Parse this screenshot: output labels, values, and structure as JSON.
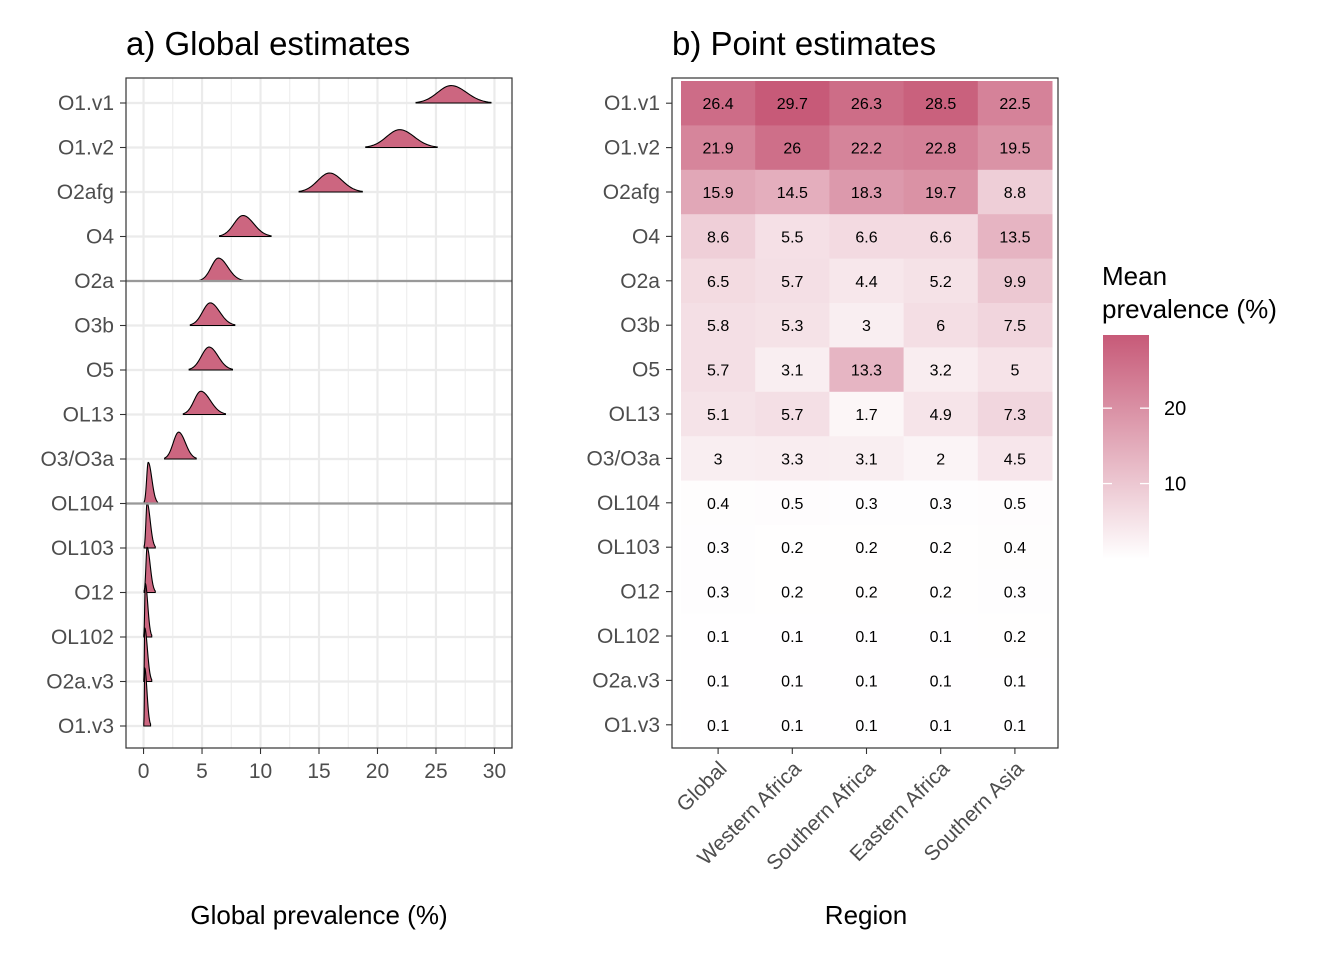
{
  "panel_a": {
    "title": "a) Global estimates",
    "xlabel": "Global prevalence (%)"
  },
  "panel_b": {
    "title": "b) Point estimates",
    "xlabel": "Region"
  },
  "legend": {
    "title_line1": "Mean",
    "title_line2": "prevalence (%)",
    "ticks": [
      10,
      20
    ],
    "color_low": "#ffffff",
    "color_high": "#c75a78"
  },
  "colors": {
    "ridge_fill": "#cc6680",
    "ridge_line": "#000000",
    "grid": "#ebebeb",
    "ref_line": "#999999"
  },
  "chart_data": [
    {
      "type": "ridgeline",
      "title": "a) Global estimates",
      "xlabel": "Global prevalence (%)",
      "ylabel": "",
      "xlim": [
        -1.5,
        31.5
      ],
      "xticks": [
        0,
        5,
        10,
        15,
        20,
        25,
        30
      ],
      "grid": true,
      "categories": [
        "O1.v1",
        "O1.v2",
        "O2afg",
        "O4",
        "O2a",
        "O3b",
        "O5",
        "OL13",
        "O3/O3a",
        "OL104",
        "OL103",
        "O12",
        "OL102",
        "O2a.v3",
        "O1.v3"
      ],
      "reference_lines_at": [
        "O2a",
        "OL104"
      ],
      "series": [
        {
          "category": "O1.v1",
          "mode": 26.3,
          "min": 23.3,
          "max": 29.7
        },
        {
          "category": "O1.v2",
          "mode": 21.9,
          "min": 19.0,
          "max": 25.1
        },
        {
          "category": "O2afg",
          "mode": 15.9,
          "min": 13.3,
          "max": 18.7
        },
        {
          "category": "O4",
          "mode": 8.5,
          "min": 6.5,
          "max": 10.9
        },
        {
          "category": "O2a",
          "mode": 6.4,
          "min": 4.8,
          "max": 8.5
        },
        {
          "category": "O3b",
          "mode": 5.7,
          "min": 4.0,
          "max": 7.8
        },
        {
          "category": "O5",
          "mode": 5.6,
          "min": 3.9,
          "max": 7.6
        },
        {
          "category": "OL13",
          "mode": 4.9,
          "min": 3.4,
          "max": 7.0
        },
        {
          "category": "O3/O3a",
          "mode": 3.0,
          "min": 1.8,
          "max": 4.5
        },
        {
          "category": "OL104",
          "mode": 0.4,
          "min": 0.05,
          "max": 1.2
        },
        {
          "category": "OL103",
          "mode": 0.3,
          "min": 0.05,
          "max": 1.0
        },
        {
          "category": "O12",
          "mode": 0.3,
          "min": 0.05,
          "max": 1.0
        },
        {
          "category": "OL102",
          "mode": 0.15,
          "min": 0.02,
          "max": 0.7
        },
        {
          "category": "O2a.v3",
          "mode": 0.1,
          "min": 0.02,
          "max": 0.7
        },
        {
          "category": "O1.v3",
          "mode": 0.1,
          "min": 0.02,
          "max": 0.6
        }
      ]
    },
    {
      "type": "heatmap",
      "title": "b) Point estimates",
      "xlabel": "Region",
      "ylabel": "",
      "x_categories": [
        "Global",
        "Western Africa",
        "Southern Africa",
        "Eastern Africa",
        "Southern Asia"
      ],
      "y_categories": [
        "O1.v1",
        "O1.v2",
        "O2afg",
        "O4",
        "O2a",
        "O3b",
        "O5",
        "OL13",
        "O3/O3a",
        "OL104",
        "OL103",
        "O12",
        "OL102",
        "O2a.v3",
        "O1.v3"
      ],
      "values": [
        [
          26.4,
          29.7,
          26.3,
          28.5,
          22.5
        ],
        [
          21.9,
          26,
          22.2,
          22.8,
          19.5
        ],
        [
          15.9,
          14.5,
          18.3,
          19.7,
          8.8
        ],
        [
          8.6,
          5.5,
          6.6,
          6.6,
          13.5
        ],
        [
          6.5,
          5.7,
          4.4,
          5.2,
          9.9
        ],
        [
          5.8,
          5.3,
          3,
          6,
          7.5
        ],
        [
          5.7,
          3.1,
          13.3,
          3.2,
          5
        ],
        [
          5.1,
          5.7,
          1.7,
          4.9,
          7.3
        ],
        [
          3,
          3.3,
          3.1,
          2,
          4.5
        ],
        [
          0.4,
          0.5,
          0.3,
          0.3,
          0.5
        ],
        [
          0.3,
          0.2,
          0.2,
          0.2,
          0.4
        ],
        [
          0.3,
          0.2,
          0.2,
          0.2,
          0.3
        ],
        [
          0.1,
          0.1,
          0.1,
          0.1,
          0.2
        ],
        [
          0.1,
          0.1,
          0.1,
          0.1,
          0.1
        ],
        [
          0.1,
          0.1,
          0.1,
          0.1,
          0.1
        ]
      ],
      "color_scale": {
        "min": 0,
        "max": 29.7,
        "legend_title": "Mean prevalence (%)",
        "legend_ticks": [
          10,
          20
        ]
      }
    }
  ]
}
